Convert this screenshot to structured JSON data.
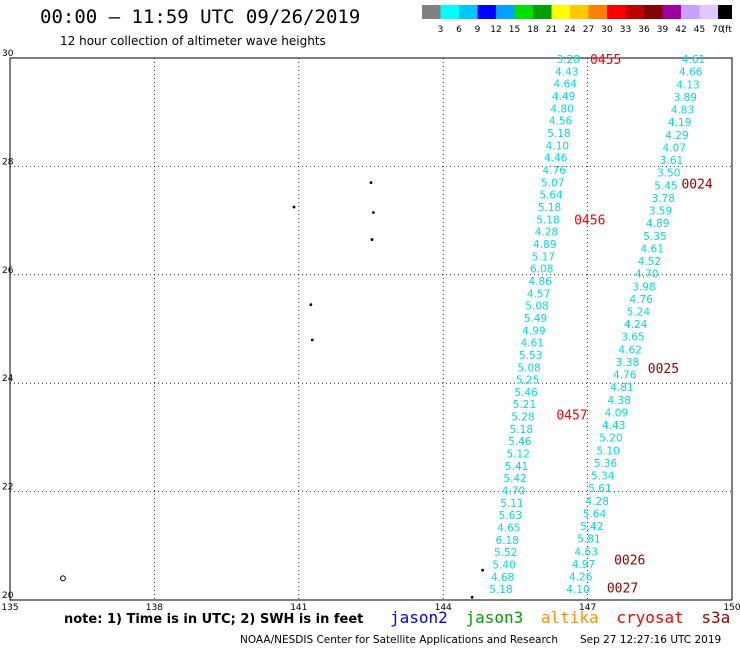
{
  "header": {
    "title": "00:00 – 11:59 UTC 09/26/2019",
    "subtitle": "12 hour collection of altimeter wave heights"
  },
  "scale": {
    "unit": "(ft)",
    "colors": [
      "#808080",
      "#00ffff",
      "#00c8ff",
      "#0000ff",
      "#00a0ff",
      "#00e000",
      "#00a000",
      "#ffff00",
      "#ffc800",
      "#ff8000",
      "#ff0000",
      "#c00000",
      "#800000",
      "#a000a0",
      "#c8a0ff",
      "#e0c8ff",
      "#000000"
    ],
    "labels": [
      "3",
      "6",
      "9",
      "12",
      "15",
      "18",
      "21",
      "24",
      "27",
      "30",
      "33",
      "36",
      "39",
      "42",
      "45",
      "70"
    ]
  },
  "map": {
    "lon_ticks": [
      "135",
      "138",
      "141",
      "144",
      "147",
      "150"
    ],
    "lat_ticks": [
      "30",
      "28",
      "26",
      "24",
      "22",
      "20"
    ],
    "lon_range": [
      135,
      150
    ],
    "lat_range": [
      20,
      30
    ],
    "tracks": [
      {
        "name": "track-a",
        "color": "#00d8e8",
        "lon_start": 146.6,
        "lon_end": 145.2,
        "lat_start": 29.98,
        "lat_end": 20.2,
        "values": [
          "3.28",
          "4.43",
          "4.64",
          "4.49",
          "4.80",
          "4.56",
          "5.18",
          "4.10",
          "4.46",
          "4.76",
          "5.07",
          "5.64",
          "5.18",
          "5.18",
          "4.28",
          "4.89",
          "5.17",
          "6.08",
          "4.86",
          "4.57",
          "5.08",
          "5.49",
          "4.99",
          "4.61",
          "5.53",
          "5.08",
          "5.25",
          "5.46",
          "5.21",
          "5.28",
          "5.18",
          "5.46",
          "5.12",
          "5.41",
          "5.42",
          "4.70",
          "5.11",
          "5.63",
          "4.65",
          "6.18",
          "5.52",
          "5.40",
          "4.68",
          "5.18"
        ]
      },
      {
        "name": "track-b",
        "color": "#00d8e8",
        "lon_start": 149.2,
        "lon_end": 146.8,
        "lat_start": 29.98,
        "lat_end": 20.2,
        "values": [
          "4.61",
          "4.66",
          "4.13",
          "3.89",
          "4.83",
          "4.19",
          "4.29",
          "4.07",
          "3.61",
          "3.50",
          "5.45",
          "3.78",
          "3.59",
          "4.89",
          "5.35",
          "4.61",
          "4.52",
          "4.70",
          "3.98",
          "4.76",
          "5.24",
          "4.24",
          "3.65",
          "4.62",
          "3.38",
          "4.76",
          "4.81",
          "4.38",
          "4.09",
          "4.43",
          "5.20",
          "5.10",
          "5.36",
          "5.34",
          "5.61",
          "4.28",
          "5.64",
          "5.42",
          "5.81",
          "4.63",
          "4.97",
          "4.26",
          "4.10"
        ]
      }
    ],
    "time_labels": [
      {
        "text": "0455",
        "color": "#ff0000",
        "lon": 147.05,
        "lat": 29.98
      },
      {
        "text": "0456",
        "color": "#ff0000",
        "lon": 146.72,
        "lat": 27.02
      },
      {
        "text": "0457",
        "color": "#ff0000",
        "lon": 146.35,
        "lat": 23.42
      },
      {
        "text": "0024",
        "color": "#900000",
        "lon": 148.95,
        "lat": 27.68
      },
      {
        "text": "0025",
        "color": "#900000",
        "lon": 148.25,
        "lat": 24.28
      },
      {
        "text": "0026",
        "color": "#900000",
        "lon": 147.55,
        "lat": 20.75
      },
      {
        "text": "0027",
        "color": "#900000",
        "lon": 147.4,
        "lat": 20.23
      }
    ],
    "islands": [
      {
        "lon": 142.5,
        "lat": 27.7
      },
      {
        "lon": 142.55,
        "lat": 27.15
      },
      {
        "lon": 142.52,
        "lat": 26.65
      },
      {
        "lon": 140.9,
        "lat": 27.25
      },
      {
        "lon": 141.25,
        "lat": 25.45
      },
      {
        "lon": 141.28,
        "lat": 24.8
      },
      {
        "lon": 144.82,
        "lat": 20.55
      },
      {
        "lon": 144.6,
        "lat": 20.05
      }
    ],
    "atoll": {
      "lon": 136.1,
      "lat": 20.4
    }
  },
  "footer": {
    "note": "note: 1) Time is in UTC; 2) SWH is in feet",
    "satellites": [
      {
        "name": "jason2",
        "color": "#0000ff"
      },
      {
        "name": "jason3",
        "color": "#00a000"
      },
      {
        "name": "altika",
        "color": "#ff9000"
      },
      {
        "name": "cryosat",
        "color": "#ff0000"
      },
      {
        "name": "s3a",
        "color": "#900000"
      }
    ],
    "credit": "NOAA/NESDIS Center for Satellite Applications and Research",
    "timestamp": "Sep 27 12:27:16 UTC 2019"
  }
}
